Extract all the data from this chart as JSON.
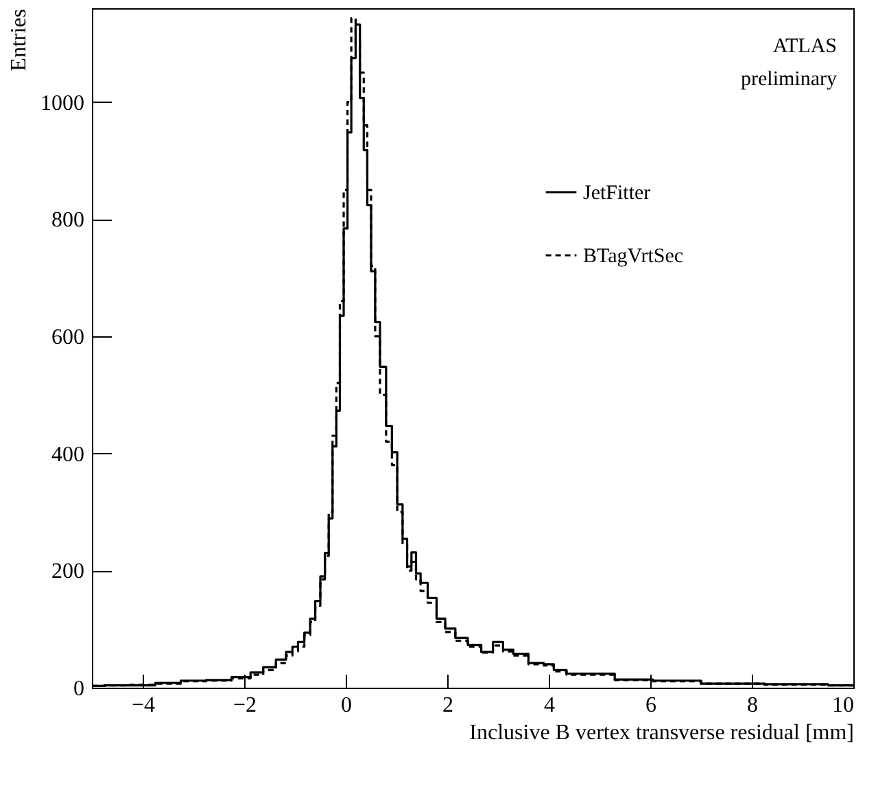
{
  "chart_data": {
    "type": "step",
    "xlabel": "Inclusive B vertex transverse residual [mm]",
    "ylabel": "Entries",
    "annotations": [
      "ATLAS",
      "preliminary"
    ],
    "x": [
      -5,
      -4.5,
      -4,
      -3.5,
      -3,
      -2.5,
      -2,
      -1.75,
      -1.5,
      -1.25,
      -1.1,
      -1,
      -0.88,
      -0.75,
      -0.65,
      -0.55,
      -0.45,
      -0.37,
      -0.3,
      -0.22,
      -0.15,
      -0.08,
      0,
      0.07,
      0.15,
      0.24,
      0.32,
      0.39,
      0.46,
      0.54,
      0.62,
      0.73,
      0.86,
      0.96,
      1.07,
      1.17,
      1.25,
      1.34,
      1.43,
      1.52,
      1.71,
      1.87,
      2.05,
      2.27,
      2.54,
      2.8,
      3,
      3.2,
      3.4,
      3.8,
      4,
      4.2,
      4.5,
      5,
      5.6,
      6.5,
      7.5,
      9,
      10
    ],
    "series": [
      {
        "name": "JetFitter",
        "color": "#000000",
        "line_style": "solid",
        "values": [
          3,
          4,
          4,
          8,
          12,
          13,
          18,
          26,
          35,
          48,
          61,
          70,
          78,
          94,
          118,
          148,
          190,
          230,
          289,
          412,
          473,
          635,
          784,
          948,
          1075,
          1132,
          1007,
          918,
          824,
          711,
          624,
          548,
          447,
          402,
          313,
          254,
          207,
          231,
          195,
          179,
          153,
          118,
          101,
          85,
          73,
          61,
          78,
          65,
          58,
          42,
          40,
          30,
          24,
          24,
          14,
          12,
          7,
          6,
          4
        ]
      },
      {
        "name": "BTagVrtSec",
        "color": "#000000",
        "line_style": "dashed",
        "values": [
          3,
          4,
          5,
          7,
          11,
          12,
          16,
          22,
          30,
          42,
          55,
          62,
          70,
          90,
          112,
          140,
          185,
          225,
          300,
          430,
          520,
          660,
          850,
          1000,
          1143,
          1100,
          1050,
          960,
          850,
          720,
          600,
          500,
          420,
          380,
          300,
          245,
          200,
          215,
          185,
          165,
          145,
          112,
          95,
          80,
          70,
          60,
          72,
          62,
          55,
          40,
          38,
          28,
          22,
          22,
          13,
          11,
          7,
          5,
          4
        ]
      }
    ],
    "xlim": [
      -5,
      10
    ],
    "xticks": [
      -4,
      -2,
      0,
      2,
      4,
      6,
      8,
      10
    ],
    "ylim": [
      0,
      1160
    ],
    "yticks": [
      0,
      200,
      400,
      600,
      800,
      1000
    ],
    "legend": "top right",
    "grid": false
  }
}
